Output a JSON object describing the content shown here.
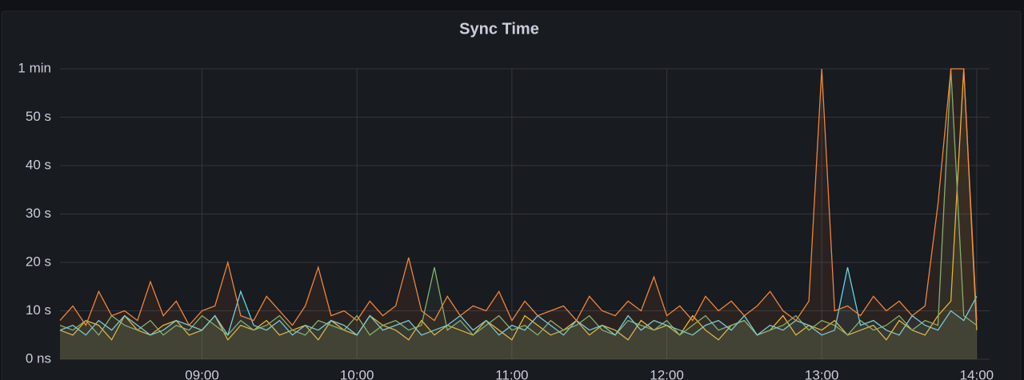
{
  "chart_data": {
    "type": "line",
    "title": "Sync Time",
    "x": [
      "08:05",
      "08:10",
      "08:15",
      "08:20",
      "08:25",
      "08:30",
      "08:35",
      "08:40",
      "08:45",
      "08:50",
      "08:55",
      "09:00",
      "09:05",
      "09:10",
      "09:15",
      "09:20",
      "09:25",
      "09:30",
      "09:35",
      "09:40",
      "09:45",
      "09:50",
      "09:55",
      "10:00",
      "10:05",
      "10:10",
      "10:15",
      "10:20",
      "10:25",
      "10:30",
      "10:35",
      "10:40",
      "10:45",
      "10:50",
      "10:55",
      "11:00",
      "11:05",
      "11:10",
      "11:15",
      "11:20",
      "11:25",
      "11:30",
      "11:35",
      "11:40",
      "11:45",
      "11:50",
      "11:55",
      "12:00",
      "12:05",
      "12:10",
      "12:15",
      "12:20",
      "12:25",
      "12:30",
      "12:35",
      "12:40",
      "12:45",
      "12:50",
      "12:55",
      "13:00",
      "13:05",
      "13:10",
      "13:15",
      "13:20",
      "13:25",
      "13:30",
      "13:35",
      "13:40",
      "13:45",
      "13:50",
      "13:55",
      "14:00"
    ],
    "series": [
      {
        "color": "#eab839",
        "values": [
          6,
          5,
          8,
          7,
          4,
          9,
          6,
          5,
          7,
          8,
          5,
          6,
          9,
          4,
          7,
          6,
          8,
          5,
          6,
          7,
          4,
          8,
          6,
          5,
          9,
          7,
          6,
          4,
          8,
          5,
          7,
          6,
          5,
          8,
          6,
          4,
          9,
          7,
          5,
          6,
          8,
          5,
          7,
          6,
          4,
          8,
          6,
          7,
          5,
          9,
          6,
          4,
          7,
          8,
          5,
          6,
          9,
          5,
          7,
          6,
          8,
          5,
          6,
          7,
          4,
          8,
          6,
          5,
          9,
          12,
          60,
          6
        ]
      },
      {
        "color": "#7eb26d",
        "values": [
          7,
          6,
          8,
          5,
          9,
          7,
          6,
          8,
          5,
          7,
          6,
          9,
          7,
          5,
          8,
          6,
          7,
          9,
          6,
          5,
          8,
          7,
          6,
          9,
          5,
          7,
          8,
          6,
          7,
          19,
          6,
          8,
          5,
          7,
          9,
          6,
          7,
          5,
          8,
          6,
          7,
          9,
          6,
          5,
          8,
          7,
          6,
          8,
          5,
          7,
          9,
          6,
          7,
          8,
          5,
          6,
          7,
          9,
          6,
          8,
          7,
          5,
          8,
          6,
          7,
          9,
          6,
          8,
          7,
          60,
          9,
          7
        ]
      },
      {
        "color": "#6ed0e0",
        "values": [
          6,
          7,
          5,
          8,
          6,
          9,
          7,
          5,
          6,
          8,
          7,
          6,
          9,
          5,
          14,
          7,
          6,
          8,
          5,
          7,
          6,
          8,
          7,
          5,
          9,
          6,
          7,
          8,
          5,
          6,
          7,
          9,
          6,
          8,
          5,
          7,
          6,
          9,
          7,
          5,
          8,
          6,
          7,
          5,
          9,
          6,
          8,
          7,
          6,
          5,
          7,
          8,
          6,
          9,
          5,
          7,
          6,
          8,
          7,
          5,
          6,
          19,
          7,
          8,
          6,
          5,
          9,
          7,
          6,
          10,
          8,
          13
        ]
      },
      {
        "color": "#ef843c",
        "values": [
          8,
          11,
          7,
          14,
          9,
          10,
          8,
          16,
          9,
          12,
          7,
          10,
          11,
          20,
          9,
          8,
          13,
          10,
          7,
          11,
          19,
          9,
          10,
          8,
          12,
          9,
          11,
          21,
          10,
          8,
          13,
          9,
          11,
          10,
          14,
          8,
          12,
          9,
          10,
          11,
          8,
          13,
          10,
          9,
          12,
          10,
          17,
          9,
          11,
          8,
          13,
          10,
          12,
          9,
          11,
          14,
          10,
          8,
          12,
          60,
          10,
          11,
          9,
          13,
          10,
          12,
          9,
          11,
          32,
          60,
          60,
          8
        ]
      }
    ],
    "xlim": [
      "08:05",
      "14:05"
    ],
    "xticks": [
      "09:00",
      "10:00",
      "11:00",
      "12:00",
      "13:00",
      "14:00"
    ],
    "ylim": [
      0,
      60
    ],
    "yticks": [
      {
        "value": 0,
        "label": "0 ns"
      },
      {
        "value": 10,
        "label": "10 s"
      },
      {
        "value": 20,
        "label": "20 s"
      },
      {
        "value": 30,
        "label": "30 s"
      },
      {
        "value": 40,
        "label": "40 s"
      },
      {
        "value": 50,
        "label": "50 s"
      },
      {
        "value": 60,
        "label": "1 min"
      }
    ],
    "grid": true
  }
}
